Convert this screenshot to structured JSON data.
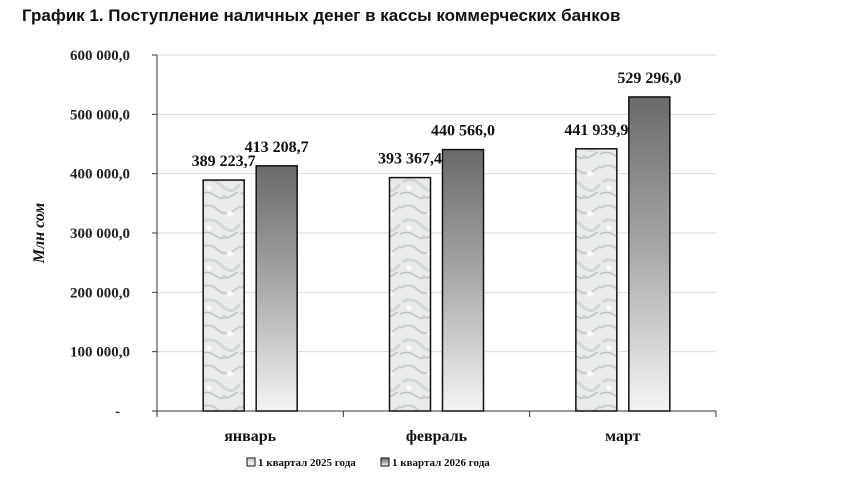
{
  "page": {
    "title": "График 1. Поступление наличных денег в кассы коммерческих банков"
  },
  "chart_data": {
    "type": "bar",
    "title": "График 1. Поступление наличных денег в кассы коммерческих банков",
    "ylabel": "Млн сом",
    "xlabel": "",
    "ylim": [
      0,
      600000
    ],
    "yticks": [
      0,
      100000,
      200000,
      300000,
      400000,
      500000,
      600000
    ],
    "ytick_labels": [
      "-",
      "100 000,0",
      "200 000,0",
      "300 000,0",
      "400 000,0",
      "500 000,0",
      "600 000,0"
    ],
    "categories": [
      "январь",
      "февраль",
      "март"
    ],
    "series": [
      {
        "name": "1 квартал 2025 года",
        "values": [
          389223.7,
          393367.4,
          441939.9
        ],
        "labels": [
          "389 223,7",
          "393 367,4",
          "441 939,9"
        ]
      },
      {
        "name": "1 квартал 2026 года",
        "values": [
          413208.7,
          440566.0,
          529296.0
        ],
        "labels": [
          "413 208,7",
          "440 566,0",
          "529 296,0"
        ]
      }
    ],
    "grid": true,
    "legend_position": "bottom-center"
  }
}
